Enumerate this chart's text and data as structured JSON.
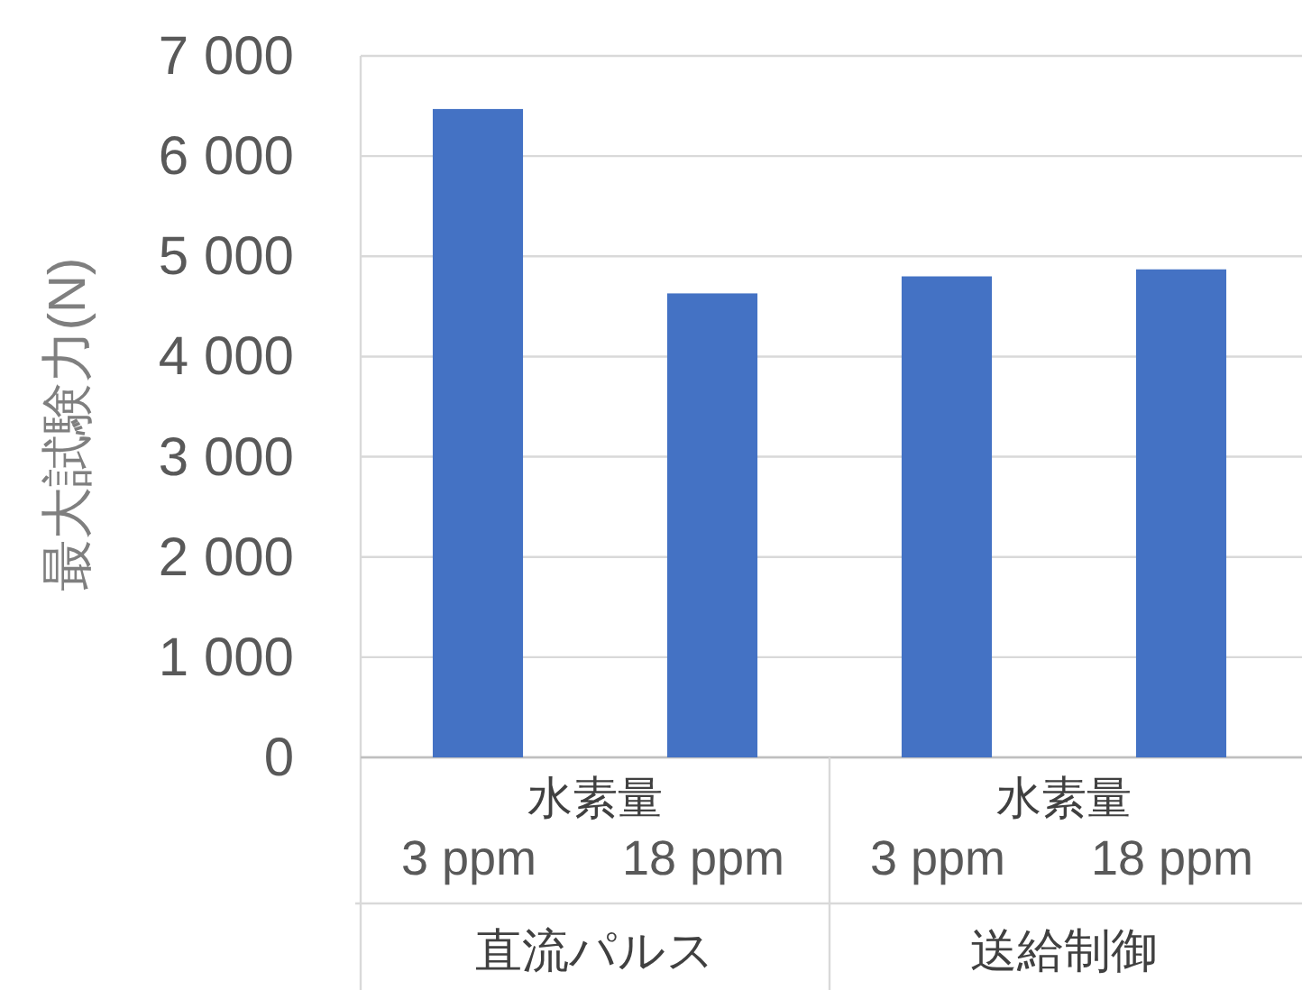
{
  "chart_data": {
    "type": "bar",
    "ylabel": "最大試験力(N)",
    "categories": [
      "3 ppm",
      "18 ppm",
      "3 ppm",
      "18 ppm"
    ],
    "values": [
      6470,
      4630,
      4800,
      4870
    ],
    "color": "#4472c4",
    "ylim": [
      0,
      7000
    ],
    "yticks": [
      {
        "value": 0,
        "label": "0"
      },
      {
        "value": 1000,
        "label": "1 000"
      },
      {
        "value": 2000,
        "label": "2 000"
      },
      {
        "value": 3000,
        "label": "3 000"
      },
      {
        "value": 4000,
        "label": "4 000"
      },
      {
        "value": 5000,
        "label": "5 000"
      },
      {
        "value": 6000,
        "label": "6 000"
      },
      {
        "value": 7000,
        "label": "7 000"
      }
    ],
    "grid": "y",
    "annotations": [
      "水素量",
      "水素量",
      "直流パルス",
      "送給制御"
    ]
  }
}
